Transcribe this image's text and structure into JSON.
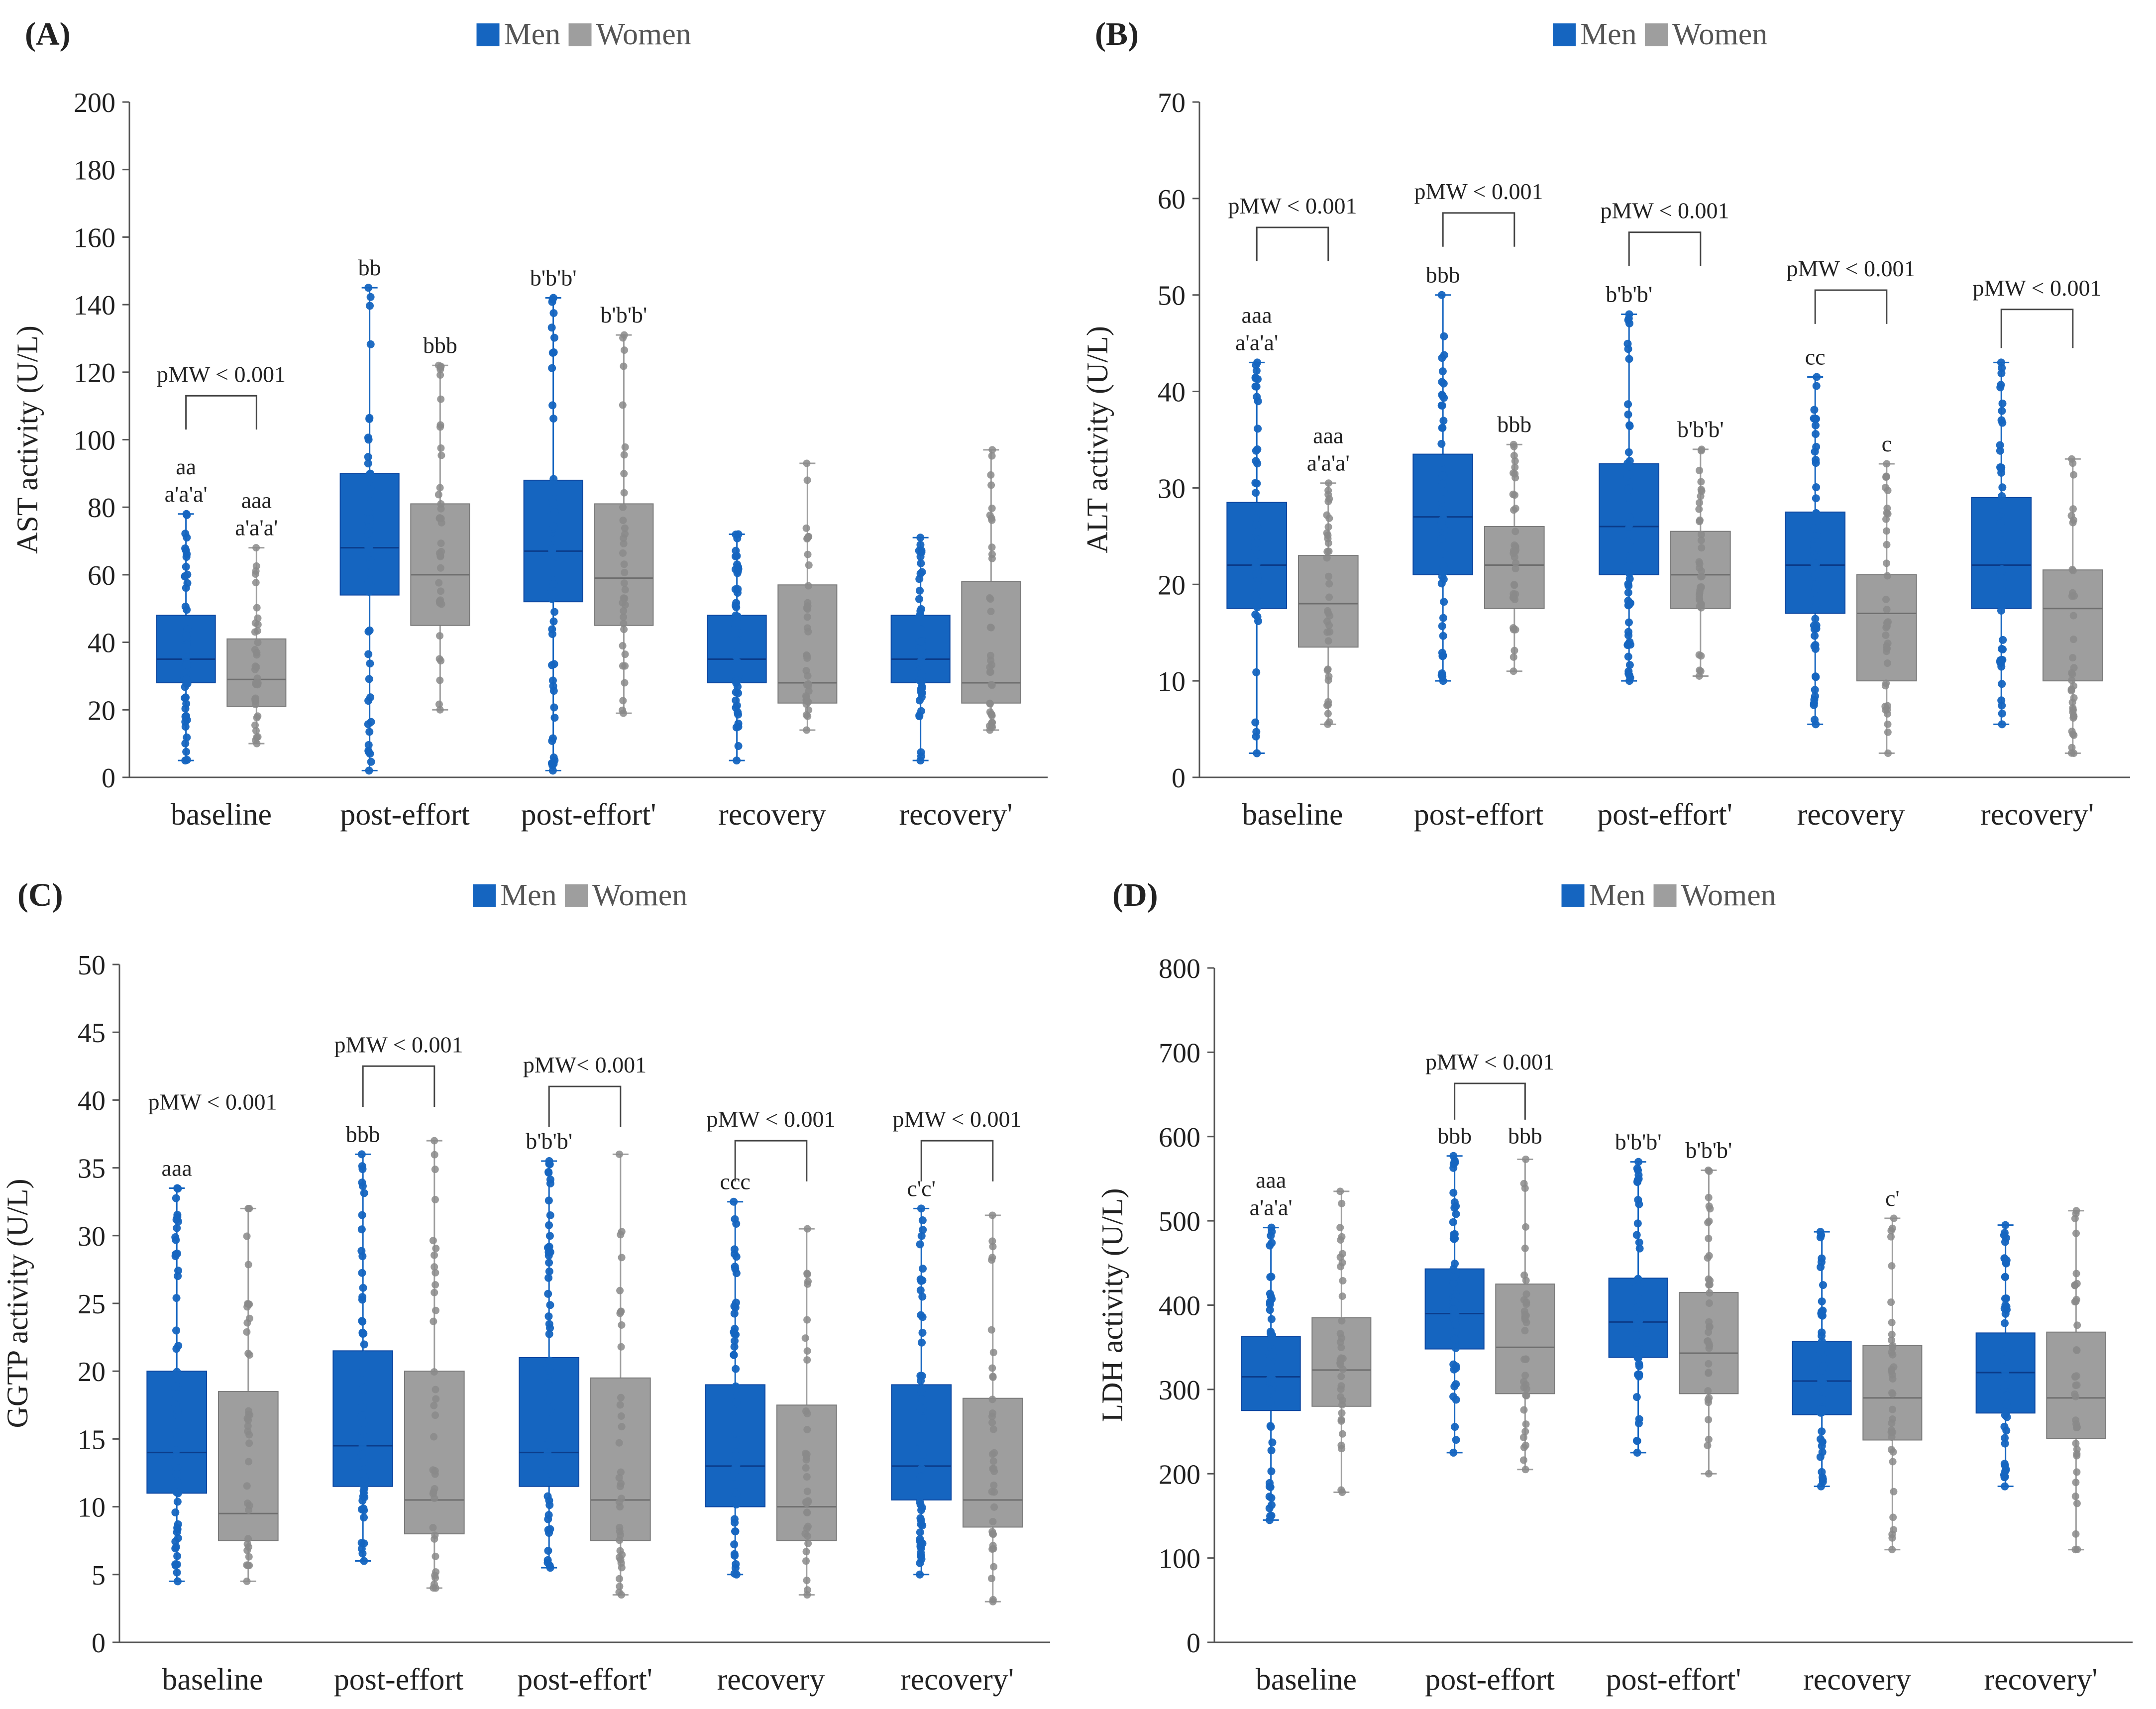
{
  "colors": {
    "men": "#1565C0",
    "women": "#9E9E9E",
    "men_point": "#1565C0",
    "women_point": "#8A8A8A",
    "axis": "#555555",
    "text": "#222222"
  },
  "legend": {
    "men": "Men",
    "women": "Women"
  },
  "chart_data": [
    {
      "type": "boxplot",
      "panel": "(A)",
      "ylabel": "AST activity (U/L)",
      "xlabel": "",
      "ylim": [
        0,
        200
      ],
      "yticks": [
        0,
        20,
        40,
        60,
        80,
        100,
        120,
        140,
        160,
        180,
        200
      ],
      "categories": [
        "baseline",
        "post-effort",
        "post-effort'",
        "recovery",
        "recovery'"
      ],
      "legend_position": "top-center",
      "series": [
        {
          "name": "Men",
          "boxes": [
            {
              "min": 5,
              "q1": 28,
              "median": 35,
              "q3": 48,
              "max": 78
            },
            {
              "min": 2,
              "q1": 54,
              "median": 68,
              "q3": 90,
              "max": 145
            },
            {
              "min": 2,
              "q1": 52,
              "median": 67,
              "q3": 88,
              "max": 142
            },
            {
              "min": 5,
              "q1": 28,
              "median": 35,
              "q3": 48,
              "max": 72
            },
            {
              "min": 5,
              "q1": 28,
              "median": 35,
              "q3": 48,
              "max": 71
            }
          ]
        },
        {
          "name": "Women",
          "boxes": [
            {
              "min": 10,
              "q1": 21,
              "median": 29,
              "q3": 41,
              "max": 68
            },
            {
              "min": 20,
              "q1": 45,
              "median": 60,
              "q3": 81,
              "max": 122
            },
            {
              "min": 19,
              "q1": 45,
              "median": 59,
              "q3": 81,
              "max": 131
            },
            {
              "min": 14,
              "q1": 22,
              "median": 28,
              "q3": 57,
              "max": 93
            },
            {
              "min": 14,
              "q1": 22,
              "median": 28,
              "q3": 58,
              "max": 97
            }
          ]
        }
      ],
      "annotations": [
        {
          "cat": 0,
          "series": 0,
          "lines": [
            "aa",
            "a'a'a'"
          ],
          "y": 78
        },
        {
          "cat": 0,
          "series": 1,
          "lines": [
            "aaa",
            "a'a'a'"
          ],
          "y": 68
        },
        {
          "cat": 1,
          "series": 0,
          "lines": [
            "bb"
          ],
          "y": 145
        },
        {
          "cat": 1,
          "series": 1,
          "lines": [
            "bbb"
          ],
          "y": 122
        },
        {
          "cat": 2,
          "series": 0,
          "lines": [
            "b'b'b'"
          ],
          "y": 142
        },
        {
          "cat": 2,
          "series": 1,
          "lines": [
            "b'b'b'"
          ],
          "y": 131
        }
      ],
      "brackets": [
        {
          "cat": 0,
          "text": "pMW < 0.001",
          "y_top": 113,
          "y_bottom": 103
        }
      ]
    },
    {
      "type": "boxplot",
      "panel": "(B)",
      "ylabel": "ALT activity (U/L)",
      "xlabel": "",
      "ylim": [
        0,
        70
      ],
      "yticks": [
        0,
        10,
        20,
        30,
        40,
        50,
        60,
        70
      ],
      "categories": [
        "baseline",
        "post-effort",
        "post-effort'",
        "recovery",
        "recovery'"
      ],
      "legend_position": "top-center",
      "series": [
        {
          "name": "Men",
          "boxes": [
            {
              "min": 2.5,
              "q1": 17.5,
              "median": 22,
              "q3": 28.5,
              "max": 43
            },
            {
              "min": 10,
              "q1": 21,
              "median": 27,
              "q3": 33.5,
              "max": 50
            },
            {
              "min": 10,
              "q1": 21,
              "median": 26,
              "q3": 32.5,
              "max": 48
            },
            {
              "min": 5.5,
              "q1": 17,
              "median": 22,
              "q3": 27.5,
              "max": 41.5
            },
            {
              "min": 5.5,
              "q1": 17.5,
              "median": 22,
              "q3": 29,
              "max": 43
            }
          ]
        },
        {
          "name": "Women",
          "boxes": [
            {
              "min": 5.5,
              "q1": 13.5,
              "median": 18,
              "q3": 23,
              "max": 30.5
            },
            {
              "min": 11,
              "q1": 17.5,
              "median": 22,
              "q3": 26,
              "max": 34.5
            },
            {
              "min": 10.5,
              "q1": 17.5,
              "median": 21,
              "q3": 25.5,
              "max": 34
            },
            {
              "min": 2.5,
              "q1": 10,
              "median": 17,
              "q3": 21,
              "max": 32.5
            },
            {
              "min": 2.5,
              "q1": 10,
              "median": 17.5,
              "q3": 21.5,
              "max": 33
            }
          ]
        }
      ],
      "annotations": [
        {
          "cat": 0,
          "series": 0,
          "lines": [
            "aaa",
            "a'a'a'"
          ],
          "y": 43
        },
        {
          "cat": 0,
          "series": 1,
          "lines": [
            "aaa",
            "a'a'a'"
          ],
          "y": 30.5
        },
        {
          "cat": 1,
          "series": 0,
          "lines": [
            "bbb"
          ],
          "y": 50
        },
        {
          "cat": 1,
          "series": 1,
          "lines": [
            "bbb"
          ],
          "y": 34.5
        },
        {
          "cat": 2,
          "series": 0,
          "lines": [
            "b'b'b'"
          ],
          "y": 48
        },
        {
          "cat": 2,
          "series": 1,
          "lines": [
            "b'b'b'"
          ],
          "y": 34
        },
        {
          "cat": 3,
          "series": 0,
          "lines": [
            "cc"
          ],
          "y": 41.5
        },
        {
          "cat": 3,
          "series": 1,
          "lines": [
            "c"
          ],
          "y": 32.5
        }
      ],
      "brackets": [
        {
          "cat": 0,
          "text": "pMW < 0.001",
          "y_top": 57,
          "y_bottom": 53.5
        },
        {
          "cat": 1,
          "text": "pMW < 0.001",
          "y_top": 58.5,
          "y_bottom": 55
        },
        {
          "cat": 2,
          "text": "pMW < 0.001",
          "y_top": 56.5,
          "y_bottom": 53
        },
        {
          "cat": 3,
          "text": "pMW < 0.001",
          "y_top": 50.5,
          "y_bottom": 47
        },
        {
          "cat": 4,
          "text": "pMW < 0.001",
          "y_top": 48.5,
          "y_bottom": 44.5
        }
      ]
    },
    {
      "type": "boxplot",
      "panel": "(C)",
      "ylabel": "GGTP activity (U/L)",
      "xlabel": "",
      "ylim": [
        0,
        50
      ],
      "yticks": [
        0,
        5,
        10,
        15,
        20,
        25,
        30,
        35,
        40,
        45,
        50
      ],
      "categories": [
        "baseline",
        "post-effort",
        "post-effort'",
        "recovery",
        "recovery'"
      ],
      "legend_position": "top-center",
      "series": [
        {
          "name": "Men",
          "boxes": [
            {
              "min": 4.5,
              "q1": 11,
              "median": 14,
              "q3": 20,
              "max": 33.5
            },
            {
              "min": 6,
              "q1": 11.5,
              "median": 14.5,
              "q3": 21.5,
              "max": 36
            },
            {
              "min": 5.5,
              "q1": 11.5,
              "median": 14,
              "q3": 21,
              "max": 35.5
            },
            {
              "min": 5,
              "q1": 10,
              "median": 13,
              "q3": 19,
              "max": 32.5
            },
            {
              "min": 5,
              "q1": 10.5,
              "median": 13,
              "q3": 19,
              "max": 32
            }
          ]
        },
        {
          "name": "Women",
          "boxes": [
            {
              "min": 4.5,
              "q1": 7.5,
              "median": 9.5,
              "q3": 18.5,
              "max": 32
            },
            {
              "min": 4,
              "q1": 8,
              "median": 10.5,
              "q3": 20,
              "max": 37
            },
            {
              "min": 3.5,
              "q1": 7.5,
              "median": 10.5,
              "q3": 19.5,
              "max": 36
            },
            {
              "min": 3.5,
              "q1": 7.5,
              "median": 10,
              "q3": 17.5,
              "max": 30.5
            },
            {
              "min": 3,
              "q1": 8.5,
              "median": 10.5,
              "q3": 18,
              "max": 31.5
            }
          ]
        }
      ],
      "annotations": [
        {
          "cat": 0,
          "series": 0,
          "lines": [
            "aaa"
          ],
          "y": 33.5
        },
        {
          "cat": 1,
          "series": 0,
          "lines": [
            "bbb"
          ],
          "y": 36
        },
        {
          "cat": 2,
          "series": 0,
          "lines": [
            "b'b'b'"
          ],
          "y": 35.5
        },
        {
          "cat": 3,
          "series": 0,
          "lines": [
            "ccc"
          ],
          "y": 32.5
        },
        {
          "cat": 4,
          "series": 0,
          "lines": [
            "c'c'"
          ],
          "y": 32
        }
      ],
      "brackets": [
        {
          "cat": 0,
          "text": "pMW < 0.001",
          "y_top": null,
          "y_bottom": null,
          "label_y": 39.3
        },
        {
          "cat": 1,
          "text": "pMW < 0.001",
          "y_top": 42.5,
          "y_bottom": 39.5
        },
        {
          "cat": 2,
          "text": "pMW< 0.001",
          "y_top": 41,
          "y_bottom": 38
        },
        {
          "cat": 3,
          "text": "pMW < 0.001",
          "y_top": 37,
          "y_bottom": 34
        },
        {
          "cat": 4,
          "text": "pMW < 0.001",
          "y_top": 37,
          "y_bottom": 34
        }
      ]
    },
    {
      "type": "boxplot",
      "panel": "(D)",
      "ylabel": "LDH activity (U/L)",
      "xlabel": "",
      "ylim": [
        0,
        800
      ],
      "yticks": [
        0,
        100,
        200,
        300,
        400,
        500,
        600,
        700,
        800
      ],
      "categories": [
        "baseline",
        "post-effort",
        "post-effort'",
        "recovery",
        "recovery'"
      ],
      "legend_position": "top-center",
      "series": [
        {
          "name": "Men",
          "boxes": [
            {
              "min": 145,
              "q1": 275,
              "median": 315,
              "q3": 363,
              "max": 492
            },
            {
              "min": 225,
              "q1": 348,
              "median": 390,
              "q3": 443,
              "max": 577
            },
            {
              "min": 225,
              "q1": 338,
              "median": 380,
              "q3": 432,
              "max": 570
            },
            {
              "min": 185,
              "q1": 270,
              "median": 310,
              "q3": 357,
              "max": 487
            },
            {
              "min": 185,
              "q1": 272,
              "median": 320,
              "q3": 367,
              "max": 495
            }
          ]
        },
        {
          "name": "Women",
          "boxes": [
            {
              "min": 178,
              "q1": 280,
              "median": 323,
              "q3": 385,
              "max": 535
            },
            {
              "min": 205,
              "q1": 295,
              "median": 350,
              "q3": 425,
              "max": 573
            },
            {
              "min": 200,
              "q1": 295,
              "median": 343,
              "q3": 415,
              "max": 560
            },
            {
              "min": 110,
              "q1": 240,
              "median": 290,
              "q3": 352,
              "max": 503
            },
            {
              "min": 110,
              "q1": 242,
              "median": 290,
              "q3": 368,
              "max": 512
            }
          ]
        }
      ],
      "annotations": [
        {
          "cat": 0,
          "series": 0,
          "lines": [
            "aaa",
            "a'a'a'"
          ],
          "y": 492
        },
        {
          "cat": 1,
          "series": 0,
          "lines": [
            "bbb"
          ],
          "y": 577
        },
        {
          "cat": 1,
          "series": 1,
          "lines": [
            "bbb"
          ],
          "y": 577
        },
        {
          "cat": 2,
          "series": 0,
          "lines": [
            "b'b'b'"
          ],
          "y": 570
        },
        {
          "cat": 2,
          "series": 1,
          "lines": [
            "b'b'b'"
          ],
          "y": 560
        },
        {
          "cat": 3,
          "series": 1,
          "lines": [
            "c'"
          ],
          "y": 503
        }
      ],
      "brackets": [
        {
          "cat": 1,
          "text": "pMW < 0.001",
          "y_top": 663,
          "y_bottom": 620
        }
      ]
    }
  ]
}
